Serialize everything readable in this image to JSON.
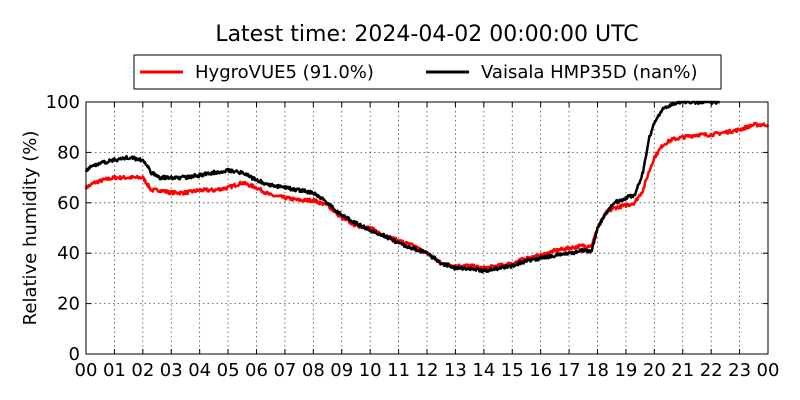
{
  "chart_data": {
    "type": "line",
    "title": "Latest time: 2024-04-02 00:00:00 UTC",
    "xlabel": "",
    "ylabel": "Relative humidity (%)",
    "xlim": [
      0,
      24
    ],
    "ylim": [
      0,
      100
    ],
    "x_ticks": [
      "00",
      "01",
      "02",
      "03",
      "04",
      "05",
      "06",
      "07",
      "08",
      "09",
      "10",
      "11",
      "12",
      "13",
      "14",
      "15",
      "16",
      "17",
      "18",
      "19",
      "20",
      "21",
      "22",
      "23",
      "00"
    ],
    "y_ticks": [
      0,
      20,
      40,
      60,
      80,
      100
    ],
    "grid": true,
    "legend_position": "top-center",
    "series": [
      {
        "name": "HygroVUE5 (91.0%)",
        "color": "#ff0000",
        "x": [
          0,
          0.3,
          0.6,
          1,
          1.5,
          2,
          2.3,
          2.6,
          3,
          3.5,
          4,
          4.5,
          5,
          5.5,
          6,
          6.5,
          7,
          7.5,
          8,
          8.5,
          9,
          9.5,
          10,
          10.5,
          11,
          11.5,
          12,
          12.5,
          13,
          13.5,
          14,
          14.5,
          15,
          15.5,
          16,
          16.5,
          17,
          17.5,
          17.8,
          18,
          18.3,
          18.6,
          19,
          19.3,
          19.6,
          19.8,
          20,
          20.3,
          20.6,
          21,
          21.5,
          22,
          22.5,
          23,
          23.5,
          24
        ],
        "y": [
          66,
          68,
          69,
          70,
          70,
          70,
          65,
          65,
          64,
          64,
          65,
          65,
          66,
          68,
          66,
          63,
          62,
          61,
          61,
          59,
          54,
          51,
          50,
          47,
          45,
          43,
          40,
          36,
          35,
          35,
          34,
          35,
          36,
          38,
          39,
          41,
          42,
          43,
          43,
          50,
          56,
          58,
          59,
          60,
          65,
          72,
          78,
          83,
          85,
          86,
          87,
          87,
          88,
          89,
          91,
          91
        ]
      },
      {
        "name": "Vaisala HMP35D (nan%)",
        "color": "#000000",
        "x": [
          0,
          0.3,
          0.6,
          1,
          1.5,
          2,
          2.3,
          2.6,
          3,
          3.5,
          4,
          4.5,
          5,
          5.5,
          6,
          6.5,
          7,
          7.5,
          8,
          8.5,
          9,
          9.5,
          10,
          10.5,
          11,
          11.5,
          12,
          12.5,
          13,
          13.5,
          14,
          14.5,
          15,
          15.5,
          16,
          16.5,
          17,
          17.5,
          17.8,
          18,
          18.3,
          18.6,
          19,
          19.3,
          19.6,
          19.8,
          20,
          20.3,
          20.6,
          21,
          21.5,
          22,
          22.3
        ],
        "y": [
          73,
          75,
          76,
          77,
          78,
          77,
          72,
          70,
          70,
          70,
          71,
          72,
          73,
          72,
          69,
          67,
          66,
          65,
          64,
          60,
          55,
          52,
          49,
          47,
          44,
          42,
          40,
          36,
          34,
          34,
          33,
          34,
          35,
          37,
          38,
          39,
          40,
          41,
          41,
          50,
          56,
          60,
          62,
          63,
          72,
          85,
          92,
          97,
          99,
          100,
          100,
          100,
          100
        ]
      }
    ]
  }
}
